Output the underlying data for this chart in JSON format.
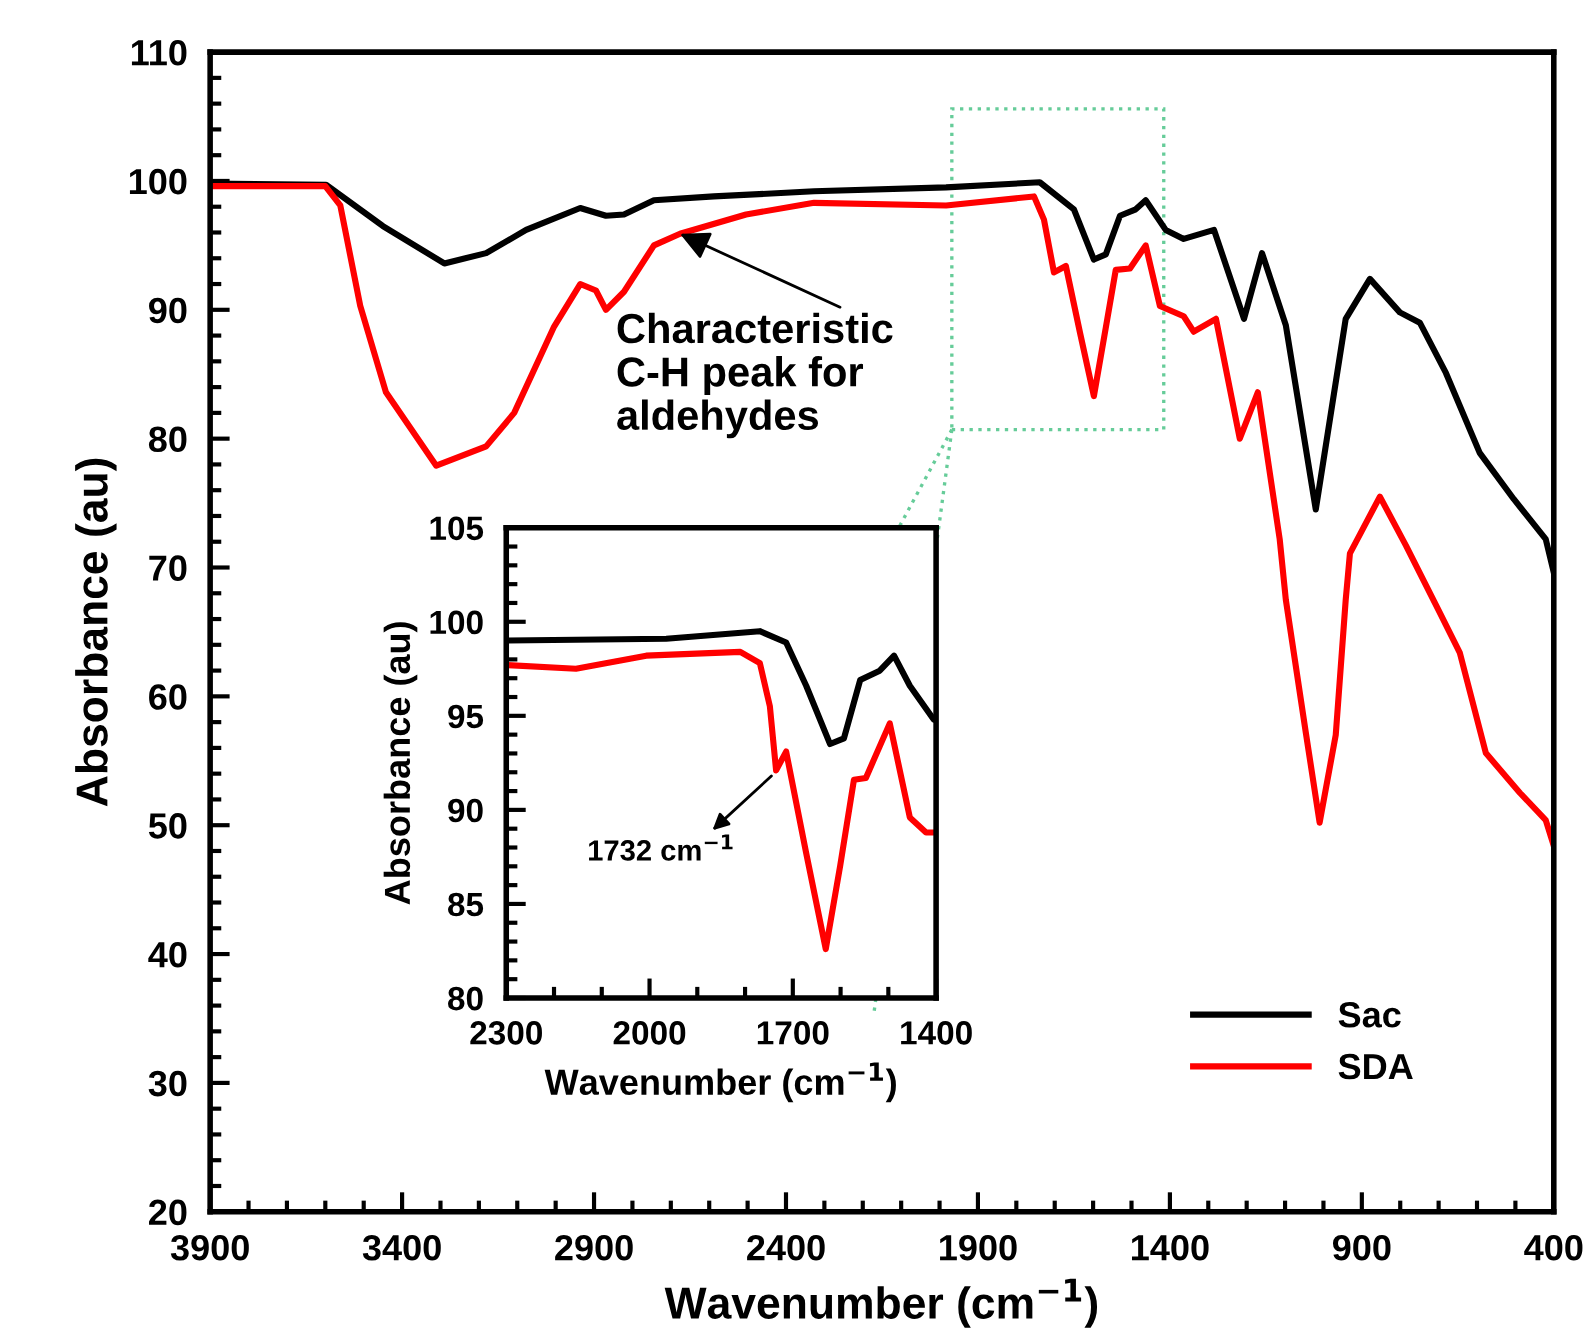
{
  "chart_data": [
    {
      "type": "line",
      "xlabel": "Wavenumber (cm$^{−1}$)",
      "ylabel": "Absorbance (au)",
      "xlim": [
        3900,
        400
      ],
      "ylim": [
        20,
        110
      ],
      "xticks": [
        3900,
        3400,
        2900,
        2400,
        1900,
        1400,
        900,
        400
      ],
      "yticks": [
        20,
        30,
        40,
        50,
        60,
        70,
        80,
        90,
        100,
        110
      ],
      "legend": "bottom right",
      "grid": false,
      "series": [
        {
          "name": "Sac",
          "color": "#000000",
          "x": [
            3900,
            3598,
            3450,
            3290,
            3181,
            3077,
            2936,
            2869,
            2822,
            2744,
            2588,
            2327,
            1983,
            1739,
            1650,
            1598,
            1567,
            1530,
            1489,
            1463,
            1411,
            1364,
            1285,
            1207,
            1160,
            1098,
            1020,
            942,
            879,
            801,
            749,
            681,
            593,
            504,
            421,
            400
          ],
          "values": [
            99.8,
            99.7,
            96.5,
            93.6,
            94.4,
            96.2,
            97.9,
            97.3,
            97.4,
            98.5,
            98.8,
            99.2,
            99.5,
            99.9,
            97.8,
            93.9,
            94.3,
            97.3,
            97.8,
            98.5,
            96.2,
            95.5,
            96.2,
            89.3,
            94.4,
            88.8,
            74.5,
            89.3,
            92.4,
            89.8,
            89.0,
            85.1,
            78.9,
            75.3,
            72.2,
            69.6
          ]
        },
        {
          "name": "SDA",
          "color": "#ff0000",
          "x": [
            3900,
            3600,
            3561,
            3509,
            3442,
            3311,
            3181,
            3108,
            3004,
            2936,
            2895,
            2869,
            2822,
            2744,
            2676,
            2504,
            2327,
            1983,
            1754,
            1728,
            1702,
            1671,
            1634,
            1598,
            1567,
            1541,
            1504,
            1463,
            1426,
            1364,
            1338,
            1280,
            1218,
            1171,
            1114,
            1098,
            1046,
            1010,
            968,
            942,
            931,
            853,
            785,
            697,
            645,
            577,
            488,
            421,
            400
          ],
          "values": [
            99.6,
            99.6,
            98.1,
            90.3,
            83.6,
            77.9,
            79.4,
            82.0,
            88.7,
            92.0,
            91.5,
            90.0,
            91.4,
            95.0,
            95.9,
            97.4,
            98.3,
            98.1,
            98.8,
            97.0,
            92.9,
            93.4,
            88.2,
            83.3,
            88.6,
            93.1,
            93.2,
            95.0,
            90.3,
            89.5,
            88.3,
            89.3,
            80.0,
            83.6,
            72.2,
            67.5,
            57.2,
            50.2,
            57.0,
            67.5,
            71.1,
            75.5,
            71.7,
            66.5,
            63.4,
            55.6,
            52.5,
            50.4,
            48.4
          ]
        }
      ],
      "annotations": [
        {
          "text": "Characteristic\nC-H peak for\naldehydes",
          "x": 2676,
          "y": 95.9
        }
      ]
    },
    {
      "type": "line",
      "xlabel": "Wavenumber (cm$^{−1}$)",
      "ylabel": "Absorbance (au)",
      "xlim": [
        2300,
        1400
      ],
      "ylim": [
        80,
        105
      ],
      "xticks": [
        2300,
        2000,
        1700,
        1400
      ],
      "yticks": [
        80,
        85,
        90,
        95,
        100,
        105
      ],
      "grid": false,
      "series": [
        {
          "color": "#000000",
          "x": [
            2300,
            1965,
            1769,
            1714,
            1672,
            1622,
            1593,
            1559,
            1518,
            1488,
            1455,
            1405,
            1400
          ],
          "values": [
            99.0,
            99.1,
            99.5,
            98.9,
            96.6,
            93.5,
            93.8,
            96.9,
            97.4,
            98.2,
            96.6,
            94.8,
            94.8
          ]
        },
        {
          "color": "#ff0000",
          "x": [
            2300,
            2154,
            2007,
            1810,
            1769,
            1748,
            1735,
            1714,
            1672,
            1631,
            1601,
            1572,
            1547,
            1497,
            1455,
            1421,
            1400
          ],
          "values": [
            97.7,
            97.5,
            98.2,
            98.4,
            97.8,
            95.5,
            92.1,
            93.1,
            87.7,
            82.6,
            87.0,
            91.6,
            91.7,
            94.6,
            89.6,
            88.8,
            88.8
          ]
        }
      ],
      "annotations": [
        {
          "text": "1732 cm$^{−1}$",
          "x": 1732,
          "y": 92.1
        }
      ]
    }
  ]
}
